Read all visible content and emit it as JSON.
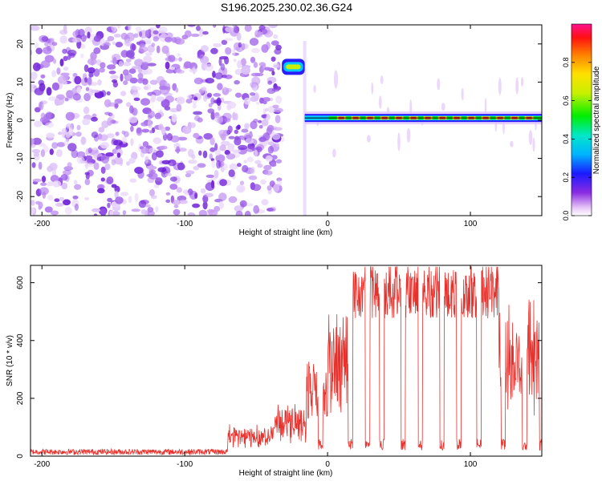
{
  "title": "S196.2025.230.02.36.G24",
  "colors": {
    "axis": "#000000",
    "snr_line": "#e8312c",
    "spec_line": "#000000"
  },
  "chart_data": [
    {
      "type": "heatmap",
      "name": "spectrogram",
      "xlabel": "Height of straight line (km)",
      "ylabel": "Frequency (Hz)",
      "xlim": [
        -208,
        150
      ],
      "ylim": [
        -25,
        25
      ],
      "xticks": [
        -200,
        -100,
        0,
        100
      ],
      "yticks": [
        -20,
        -10,
        0,
        10,
        20
      ],
      "noise_region_x": [
        -208,
        -32
      ],
      "signal_line_frequency": 0.6,
      "signal_burst": {
        "x": [
          -32,
          -16
        ],
        "frequency": 14
      },
      "signal_start_x": -16,
      "colorbar": {
        "label": "Normalized spectral amplitude",
        "range": [
          0,
          1
        ],
        "ticks": [
          0.0,
          0.2,
          0.4,
          0.6,
          0.8
        ],
        "tick_labels": [
          "0.0",
          "0.2",
          "0.4",
          "0.6",
          "0.8"
        ]
      }
    },
    {
      "type": "line",
      "name": "snr",
      "xlabel": "Height of straight line (km)",
      "ylabel": "SNR (10 * v/v)",
      "xlim": [
        -208,
        150
      ],
      "ylim": [
        0,
        660
      ],
      "xticks": [
        -200,
        -100,
        0,
        100
      ],
      "yticks": [
        0,
        200,
        400,
        600
      ],
      "levels": [
        {
          "x": [
            -208,
            -70
          ],
          "level": 15
        },
        {
          "x": [
            -70,
            -38
          ],
          "level": 80
        },
        {
          "x": [
            -38,
            -15
          ],
          "level": 130
        },
        {
          "x": [
            -15,
            0
          ],
          "level": 260
        },
        {
          "x": [
            0,
            15
          ],
          "level": 340
        },
        {
          "x": [
            15,
            40
          ],
          "level": 560
        },
        {
          "x": [
            40,
            90
          ],
          "level": 560
        },
        {
          "x": [
            90,
            120
          ],
          "level": 560
        },
        {
          "x": [
            120,
            150
          ],
          "level": 380
        }
      ],
      "dropouts": [
        -5,
        16,
        28,
        38,
        53,
        65,
        80,
        92,
        106,
        123,
        138,
        150
      ]
    }
  ]
}
